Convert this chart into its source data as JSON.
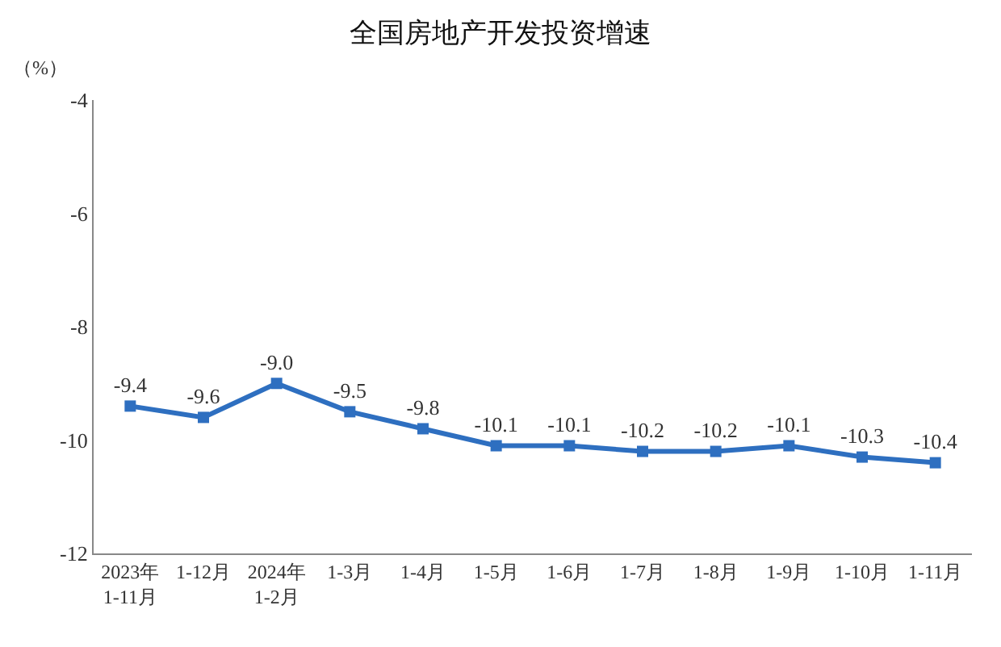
{
  "chart_data": {
    "type": "line",
    "title": "全国房地产开发投资增速",
    "ylabel": "（%）",
    "categories": [
      "2023年\n1-11月",
      "1-12月",
      "2024年\n1-2月",
      "1-3月",
      "1-4月",
      "1-5月",
      "1-6月",
      "1-7月",
      "1-8月",
      "1-9月",
      "1-10月",
      "1-11月"
    ],
    "series": [
      {
        "color": "#2e6fc0",
        "values": [
          -9.4,
          -9.6,
          -9.0,
          -9.5,
          -9.8,
          -10.1,
          -10.1,
          -10.2,
          -10.2,
          -10.1,
          -10.3,
          -10.4
        ],
        "value_labels": [
          "-9.4",
          "-9.6",
          "-9.0",
          "-9.5",
          "-9.8",
          "-10.1",
          "-10.1",
          "-10.2",
          "-10.2",
          "-10.1",
          "-10.3",
          "-10.4"
        ]
      }
    ],
    "ylim": [
      -12,
      -4
    ],
    "yticks": [
      -12,
      -10,
      -8,
      -6,
      -4
    ],
    "grid": false,
    "marker": "square",
    "line_style": "solid"
  }
}
